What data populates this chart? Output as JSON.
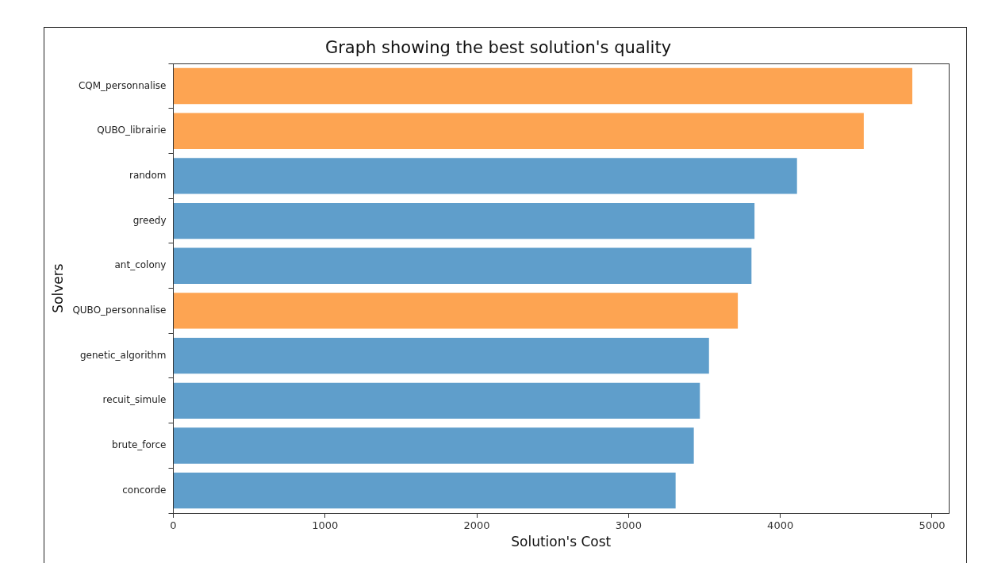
{
  "chart_data": {
    "type": "bar",
    "orientation": "horizontal",
    "title": "Graph showing the best solution's quality",
    "xlabel": "Solution's Cost",
    "ylabel": "Solvers",
    "categories": [
      "CQM_personnalise",
      "QUBO_librairie",
      "random",
      "greedy",
      "ant_colony",
      "QUBO_personnalise",
      "genetic_algorithm",
      "recuit_simule",
      "brute_force",
      "concorde"
    ],
    "values": [
      4870,
      4550,
      4110,
      3830,
      3810,
      3720,
      3530,
      3470,
      3430,
      3310
    ],
    "colors": [
      "#fda452",
      "#fda452",
      "#5f9ecb",
      "#5f9ecb",
      "#5f9ecb",
      "#fda452",
      "#5f9ecb",
      "#5f9ecb",
      "#5f9ecb",
      "#5f9ecb"
    ],
    "xlim": [
      0,
      5110
    ],
    "xticks": [
      0,
      1000,
      2000,
      3000,
      4000,
      5000
    ],
    "grid": false,
    "legend": false
  }
}
